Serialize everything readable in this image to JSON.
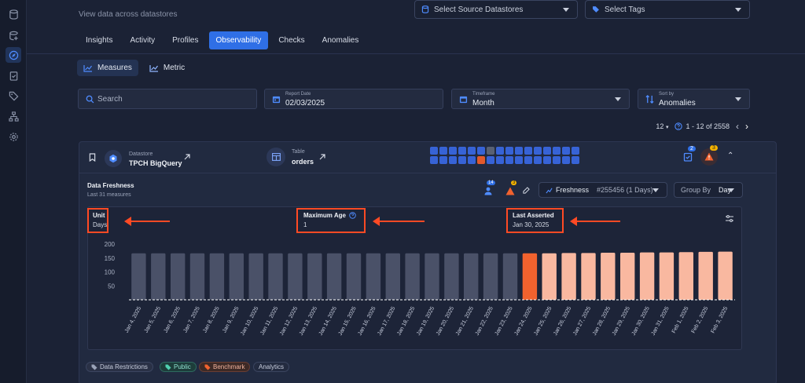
{
  "header": {
    "subtitle": "View data across datastores",
    "source_select_placeholder": "Select Source Datastores",
    "tags_select_placeholder": "Select Tags"
  },
  "tabs": [
    "Insights",
    "Activity",
    "Profiles",
    "Observability",
    "Checks",
    "Anomalies"
  ],
  "active_tab": "Observability",
  "subtabs": {
    "measures": "Measures",
    "metric": "Metric"
  },
  "filters": {
    "search_placeholder": "Search",
    "report_date_label": "Report Date",
    "report_date_value": "02/03/2025",
    "timeframe_label": "Timeframe",
    "timeframe_value": "Month",
    "sortby_label": "Sort by",
    "sortby_value": "Anomalies"
  },
  "pagination": {
    "per_page": "12",
    "range": "1 - 12 of 2558"
  },
  "card": {
    "datastore_label": "Datastore",
    "datastore_name": "TPCH BigQuery",
    "table_label": "Table",
    "table_name": "orders",
    "checks_count": "2",
    "anomalies_count": "3",
    "section_title": "Data Freshness",
    "section_subtitle": "Last 31 measures",
    "checks_badge": "14",
    "anomalies_badge": "3",
    "freshness_label": "Freshness",
    "freshness_value": "#255456 (1 Days)",
    "group_by_label": "Group By",
    "group_by_value": "Day"
  },
  "stats": {
    "unit_label": "Unit",
    "unit_value": "Days",
    "max_age_label": "Maximum Age",
    "max_age_value": "1",
    "last_asserted_label": "Last Asserted",
    "last_asserted_value": "Jan 30, 2025"
  },
  "tags": {
    "data_restrictions": "Data Restrictions",
    "public": "Public",
    "benchmark": "Benchmark",
    "analytics": "Analytics"
  },
  "colors": {
    "accent": "#2f6fe6",
    "bar_normal": "#4a5168",
    "bar_anomaly": "#f2622e",
    "bar_recent": "#f9b8a0",
    "highlight": "#ff4a24"
  },
  "chart_data": {
    "type": "bar",
    "title": "Data Freshness",
    "ylim": [
      0,
      200
    ],
    "yticks": [
      200,
      150,
      100,
      50
    ],
    "categories": [
      "Jan 4, 2025",
      "Jan 5, 2025",
      "Jan 6, 2025",
      "Jan 7, 2025",
      "Jan 8, 2025",
      "Jan 9, 2025",
      "Jan 10, 2025",
      "Jan 11, 2025",
      "Jan 12, 2025",
      "Jan 13, 2025",
      "Jan 14, 2025",
      "Jan 15, 2025",
      "Jan 16, 2025",
      "Jan 17, 2025",
      "Jan 18, 2025",
      "Jan 19, 2025",
      "Jan 20, 2025",
      "Jan 21, 2025",
      "Jan 22, 2025",
      "Jan 23, 2025",
      "Jan 24, 2025",
      "Jan 25, 2025",
      "Jan 26, 2025",
      "Jan 27, 2025",
      "Jan 28, 2025",
      "Jan 29, 2025",
      "Jan 30, 2025",
      "Jan 31, 2025",
      "Feb 1, 2025",
      "Feb 2, 2025",
      "Feb 3, 2025"
    ],
    "values": [
      167,
      167,
      167,
      167,
      167,
      167,
      167,
      167,
      167,
      167,
      167,
      167,
      167,
      167,
      167,
      167,
      167,
      167,
      167,
      167,
      167,
      167,
      168,
      168,
      169,
      169,
      170,
      170,
      171,
      172,
      173
    ],
    "status": [
      "normal",
      "normal",
      "normal",
      "normal",
      "normal",
      "normal",
      "normal",
      "normal",
      "normal",
      "normal",
      "normal",
      "normal",
      "normal",
      "normal",
      "normal",
      "normal",
      "normal",
      "normal",
      "normal",
      "normal",
      "anomaly",
      "recent",
      "recent",
      "recent",
      "recent",
      "recent",
      "recent",
      "recent",
      "recent",
      "recent",
      "recent"
    ]
  }
}
